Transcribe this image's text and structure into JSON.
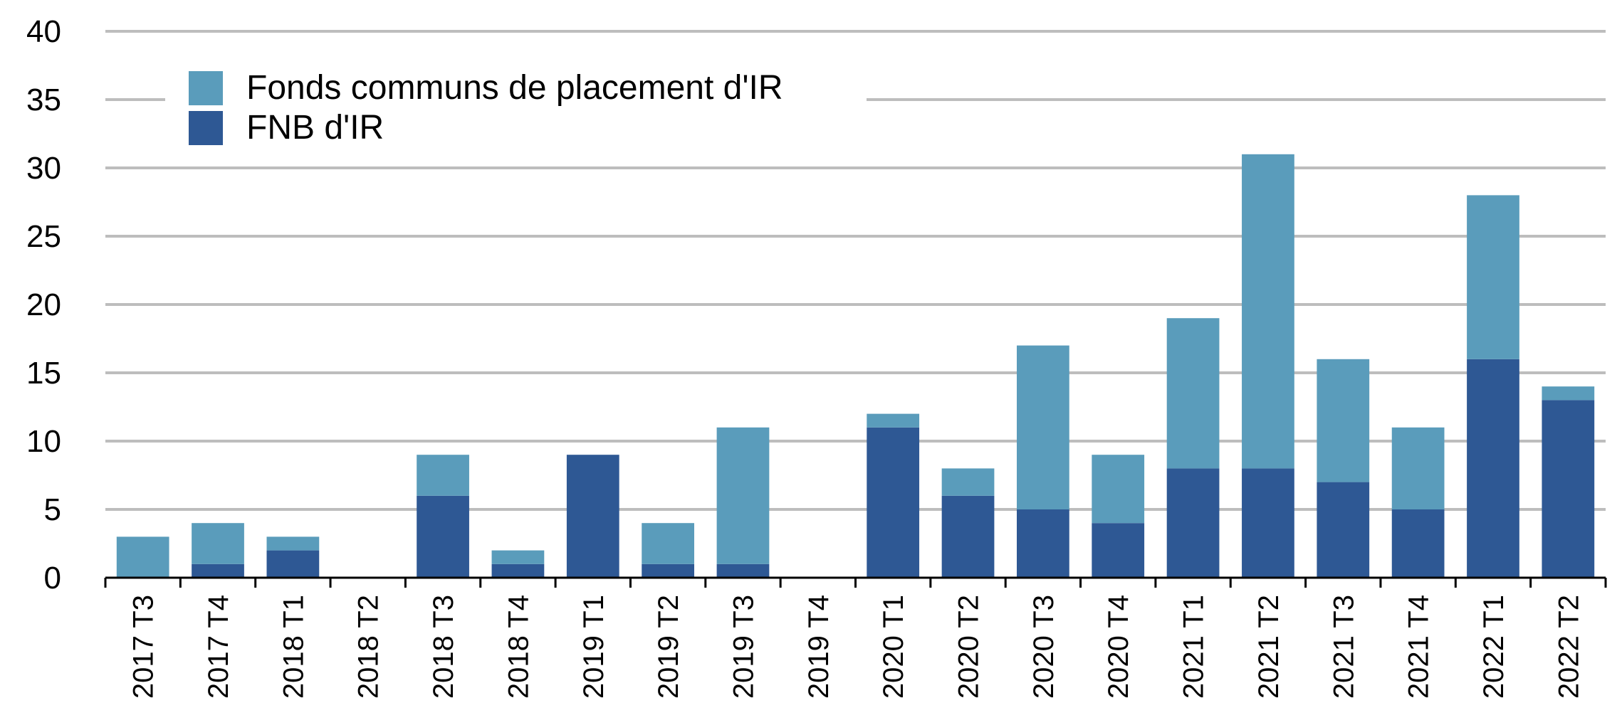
{
  "chart_data": {
    "type": "bar",
    "stacked": true,
    "categories": [
      "2017 T3",
      "2017 T4",
      "2018 T1",
      "2018 T2",
      "2018 T3",
      "2018 T4",
      "2019 T1",
      "2019 T2",
      "2019 T3",
      "2019 T4",
      "2020 T1",
      "2020 T2",
      "2020 T3",
      "2020 T4",
      "2021 T1",
      "2021 T2",
      "2021 T3",
      "2021 T4",
      "2022 T1",
      "2022 T2"
    ],
    "series": [
      {
        "name": "FNB d'IR",
        "color": "#2e5894",
        "values": [
          0,
          1,
          2,
          0,
          6,
          1,
          9,
          1,
          1,
          0,
          11,
          6,
          5,
          4,
          8,
          8,
          7,
          5,
          16,
          13
        ]
      },
      {
        "name": "Fonds communs de placement d'IR",
        "color": "#5a9cbb",
        "values": [
          3,
          3,
          1,
          0,
          3,
          1,
          0,
          3,
          10,
          0,
          1,
          2,
          12,
          5,
          11,
          23,
          9,
          6,
          12,
          1
        ]
      }
    ],
    "legend_order": [
      1,
      0
    ],
    "yticks": [
      "0",
      "5",
      "10",
      "15",
      "20",
      "25",
      "30",
      "35",
      "40"
    ],
    "ylim": [
      0,
      40
    ],
    "grid": true,
    "legend_position": "top-left",
    "title": "",
    "xlabel": "",
    "ylabel": ""
  }
}
